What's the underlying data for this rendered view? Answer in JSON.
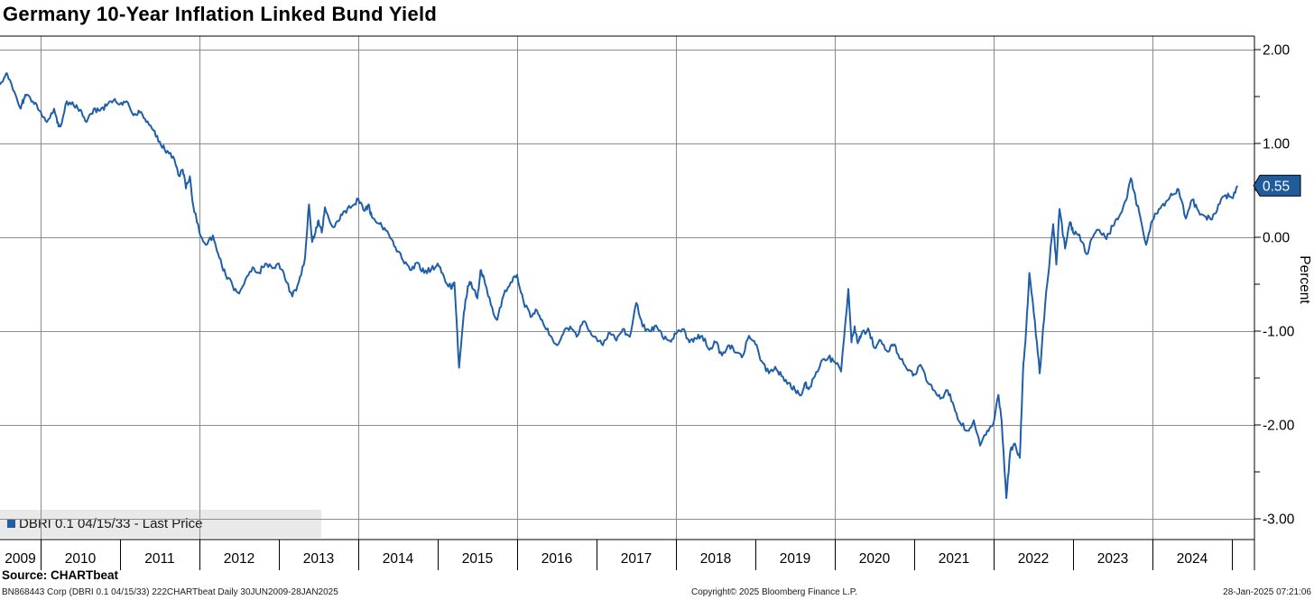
{
  "title": "Germany 10-Year Inflation Linked Bund Yield",
  "legend": {
    "label": "DBRI 0.1 04/15/33 - Last Price"
  },
  "footer": {
    "source": "Source: CHARTbeat",
    "meta": "BN868443 Corp (DBRI 0.1 04/15/33) 222CHARTbeat  Daily 30JUN2009-28JAN2025",
    "copyright": "Copyright© 2025 Bloomberg Finance L.P.",
    "timestamp": "28-Jan-2025 07:21:06"
  },
  "colors": {
    "line": "#1f5fa8",
    "badge": "#1e5c9c",
    "grid": "#8c8c8c",
    "axis": "#000000",
    "legend_bg": "#e9e9e9"
  },
  "chart_data": {
    "type": "line",
    "title": "Germany 10-Year Inflation Linked Bund Yield",
    "ylabel": "Percent",
    "xlabel": "",
    "grid": true,
    "legend_position": "bottom-left",
    "xlim": [
      2009.489,
      2025.284
    ],
    "ylim": [
      -3.221,
      2.144
    ],
    "y_major_ticks": [
      2,
      1,
      0,
      -1,
      -2,
      -3
    ],
    "y_major_tick_labels": [
      "2.00",
      "1.00",
      "0.00",
      "-1.00",
      "-2.00",
      "-3.00"
    ],
    "y_minor_ticks": [
      1.5,
      0.5,
      -0.5,
      -1.5,
      -2.5
    ],
    "x_gridline_years": [
      2010,
      2012,
      2014,
      2016,
      2018,
      2020,
      2022,
      2024
    ],
    "x_tick_years": [
      "2009",
      "2010",
      "2011",
      "2012",
      "2013",
      "2014",
      "2015",
      "2016",
      "2017",
      "2018",
      "2019",
      "2020",
      "2021",
      "2022",
      "2023",
      "2024"
    ],
    "last_price": 0.55,
    "last_price_label": "0.55",
    "series": [
      {
        "name": "DBRI 0.1 04/15/33 - Last Price",
        "points": [
          [
            2009.46,
            1.62
          ],
          [
            2009.54,
            1.7
          ],
          [
            2009.58,
            1.74
          ],
          [
            2009.67,
            1.55
          ],
          [
            2009.75,
            1.37
          ],
          [
            2009.79,
            1.48
          ],
          [
            2009.83,
            1.52
          ],
          [
            2009.92,
            1.42
          ],
          [
            2010.0,
            1.34
          ],
          [
            2010.08,
            1.23
          ],
          [
            2010.17,
            1.37
          ],
          [
            2010.21,
            1.22
          ],
          [
            2010.25,
            1.18
          ],
          [
            2010.33,
            1.45
          ],
          [
            2010.42,
            1.4
          ],
          [
            2010.5,
            1.36
          ],
          [
            2010.58,
            1.23
          ],
          [
            2010.67,
            1.37
          ],
          [
            2010.75,
            1.35
          ],
          [
            2010.83,
            1.4
          ],
          [
            2010.92,
            1.46
          ],
          [
            2011.0,
            1.42
          ],
          [
            2011.08,
            1.45
          ],
          [
            2011.17,
            1.3
          ],
          [
            2011.25,
            1.33
          ],
          [
            2011.33,
            1.23
          ],
          [
            2011.42,
            1.14
          ],
          [
            2011.5,
            1.02
          ],
          [
            2011.58,
            0.9
          ],
          [
            2011.67,
            0.86
          ],
          [
            2011.75,
            0.65
          ],
          [
            2011.79,
            0.72
          ],
          [
            2011.83,
            0.52
          ],
          [
            2011.88,
            0.65
          ],
          [
            2011.92,
            0.35
          ],
          [
            2012.0,
            0.05
          ],
          [
            2012.08,
            -0.08
          ],
          [
            2012.17,
            0.02
          ],
          [
            2012.25,
            -0.22
          ],
          [
            2012.33,
            -0.4
          ],
          [
            2012.42,
            -0.52
          ],
          [
            2012.5,
            -0.6
          ],
          [
            2012.58,
            -0.45
          ],
          [
            2012.67,
            -0.32
          ],
          [
            2012.75,
            -0.38
          ],
          [
            2012.83,
            -0.28
          ],
          [
            2012.92,
            -0.33
          ],
          [
            2013.0,
            -0.28
          ],
          [
            2013.08,
            -0.45
          ],
          [
            2013.17,
            -0.63
          ],
          [
            2013.25,
            -0.48
          ],
          [
            2013.33,
            -0.22
          ],
          [
            2013.38,
            0.35
          ],
          [
            2013.42,
            -0.05
          ],
          [
            2013.46,
            0.05
          ],
          [
            2013.5,
            0.18
          ],
          [
            2013.54,
            0.05
          ],
          [
            2013.58,
            0.32
          ],
          [
            2013.67,
            0.12
          ],
          [
            2013.75,
            0.17
          ],
          [
            2013.83,
            0.28
          ],
          [
            2013.92,
            0.33
          ],
          [
            2014.0,
            0.41
          ],
          [
            2014.08,
            0.28
          ],
          [
            2014.13,
            0.35
          ],
          [
            2014.17,
            0.22
          ],
          [
            2014.25,
            0.15
          ],
          [
            2014.33,
            0.1
          ],
          [
            2014.42,
            -0.02
          ],
          [
            2014.5,
            -0.15
          ],
          [
            2014.58,
            -0.28
          ],
          [
            2014.67,
            -0.35
          ],
          [
            2014.75,
            -0.27
          ],
          [
            2014.83,
            -0.38
          ],
          [
            2014.92,
            -0.34
          ],
          [
            2015.0,
            -0.28
          ],
          [
            2015.08,
            -0.42
          ],
          [
            2015.17,
            -0.55
          ],
          [
            2015.21,
            -0.48
          ],
          [
            2015.27,
            -1.39
          ],
          [
            2015.33,
            -0.8
          ],
          [
            2015.38,
            -0.52
          ],
          [
            2015.42,
            -0.48
          ],
          [
            2015.5,
            -0.65
          ],
          [
            2015.54,
            -0.35
          ],
          [
            2015.58,
            -0.42
          ],
          [
            2015.67,
            -0.72
          ],
          [
            2015.75,
            -0.88
          ],
          [
            2015.83,
            -0.62
          ],
          [
            2015.92,
            -0.48
          ],
          [
            2016.0,
            -0.4
          ],
          [
            2016.08,
            -0.68
          ],
          [
            2016.17,
            -0.85
          ],
          [
            2016.25,
            -0.78
          ],
          [
            2016.33,
            -0.92
          ],
          [
            2016.42,
            -1.05
          ],
          [
            2016.5,
            -1.15
          ],
          [
            2016.58,
            -1.03
          ],
          [
            2016.67,
            -0.95
          ],
          [
            2016.75,
            -1.06
          ],
          [
            2016.83,
            -0.9
          ],
          [
            2016.92,
            -1.0
          ],
          [
            2017.0,
            -1.08
          ],
          [
            2017.08,
            -1.15
          ],
          [
            2017.17,
            -1.02
          ],
          [
            2017.25,
            -1.1
          ],
          [
            2017.33,
            -0.98
          ],
          [
            2017.42,
            -1.06
          ],
          [
            2017.5,
            -0.7
          ],
          [
            2017.58,
            -0.95
          ],
          [
            2017.67,
            -1.0
          ],
          [
            2017.75,
            -0.94
          ],
          [
            2017.83,
            -1.06
          ],
          [
            2017.92,
            -1.1
          ],
          [
            2018.0,
            -1.03
          ],
          [
            2018.08,
            -0.98
          ],
          [
            2018.17,
            -1.12
          ],
          [
            2018.25,
            -1.08
          ],
          [
            2018.33,
            -1.05
          ],
          [
            2018.42,
            -1.2
          ],
          [
            2018.5,
            -1.12
          ],
          [
            2018.58,
            -1.26
          ],
          [
            2018.67,
            -1.15
          ],
          [
            2018.75,
            -1.23
          ],
          [
            2018.83,
            -1.28
          ],
          [
            2018.92,
            -1.05
          ],
          [
            2019.0,
            -1.14
          ],
          [
            2019.08,
            -1.32
          ],
          [
            2019.17,
            -1.45
          ],
          [
            2019.25,
            -1.38
          ],
          [
            2019.33,
            -1.48
          ],
          [
            2019.42,
            -1.55
          ],
          [
            2019.5,
            -1.63
          ],
          [
            2019.58,
            -1.68
          ],
          [
            2019.63,
            -1.55
          ],
          [
            2019.67,
            -1.62
          ],
          [
            2019.75,
            -1.48
          ],
          [
            2019.83,
            -1.32
          ],
          [
            2019.92,
            -1.28
          ],
          [
            2020.0,
            -1.33
          ],
          [
            2020.08,
            -1.43
          ],
          [
            2020.17,
            -0.55
          ],
          [
            2020.21,
            -1.12
          ],
          [
            2020.25,
            -0.95
          ],
          [
            2020.29,
            -1.13
          ],
          [
            2020.33,
            -1.05
          ],
          [
            2020.42,
            -0.97
          ],
          [
            2020.5,
            -1.18
          ],
          [
            2020.58,
            -1.1
          ],
          [
            2020.67,
            -1.22
          ],
          [
            2020.75,
            -1.14
          ],
          [
            2020.83,
            -1.3
          ],
          [
            2020.92,
            -1.42
          ],
          [
            2021.0,
            -1.46
          ],
          [
            2021.08,
            -1.36
          ],
          [
            2021.17,
            -1.55
          ],
          [
            2021.25,
            -1.63
          ],
          [
            2021.33,
            -1.72
          ],
          [
            2021.42,
            -1.63
          ],
          [
            2021.5,
            -1.8
          ],
          [
            2021.58,
            -1.98
          ],
          [
            2021.67,
            -2.06
          ],
          [
            2021.75,
            -1.95
          ],
          [
            2021.83,
            -2.22
          ],
          [
            2021.92,
            -2.06
          ],
          [
            2022.0,
            -1.98
          ],
          [
            2022.06,
            -1.68
          ],
          [
            2022.1,
            -1.95
          ],
          [
            2022.16,
            -2.78
          ],
          [
            2022.21,
            -2.28
          ],
          [
            2022.27,
            -2.2
          ],
          [
            2022.33,
            -2.35
          ],
          [
            2022.37,
            -1.42
          ],
          [
            2022.4,
            -1.12
          ],
          [
            2022.45,
            -0.38
          ],
          [
            2022.52,
            -0.9
          ],
          [
            2022.58,
            -1.45
          ],
          [
            2022.65,
            -0.7
          ],
          [
            2022.71,
            -0.2
          ],
          [
            2022.75,
            0.14
          ],
          [
            2022.79,
            -0.29
          ],
          [
            2022.83,
            0.3
          ],
          [
            2022.9,
            -0.12
          ],
          [
            2022.96,
            0.16
          ],
          [
            2023.0,
            0.05
          ],
          [
            2023.08,
            0.03
          ],
          [
            2023.17,
            -0.18
          ],
          [
            2023.25,
            0.0
          ],
          [
            2023.33,
            0.08
          ],
          [
            2023.42,
            -0.02
          ],
          [
            2023.5,
            0.12
          ],
          [
            2023.58,
            0.22
          ],
          [
            2023.67,
            0.4
          ],
          [
            2023.73,
            0.63
          ],
          [
            2023.79,
            0.4
          ],
          [
            2023.83,
            0.28
          ],
          [
            2023.92,
            -0.08
          ],
          [
            2024.0,
            0.18
          ],
          [
            2024.08,
            0.3
          ],
          [
            2024.17,
            0.38
          ],
          [
            2024.25,
            0.45
          ],
          [
            2024.33,
            0.51
          ],
          [
            2024.42,
            0.2
          ],
          [
            2024.5,
            0.4
          ],
          [
            2024.58,
            0.28
          ],
          [
            2024.67,
            0.22
          ],
          [
            2024.75,
            0.19
          ],
          [
            2024.83,
            0.35
          ],
          [
            2024.92,
            0.45
          ],
          [
            2025.0,
            0.42
          ],
          [
            2025.07,
            0.55
          ]
        ]
      }
    ]
  }
}
